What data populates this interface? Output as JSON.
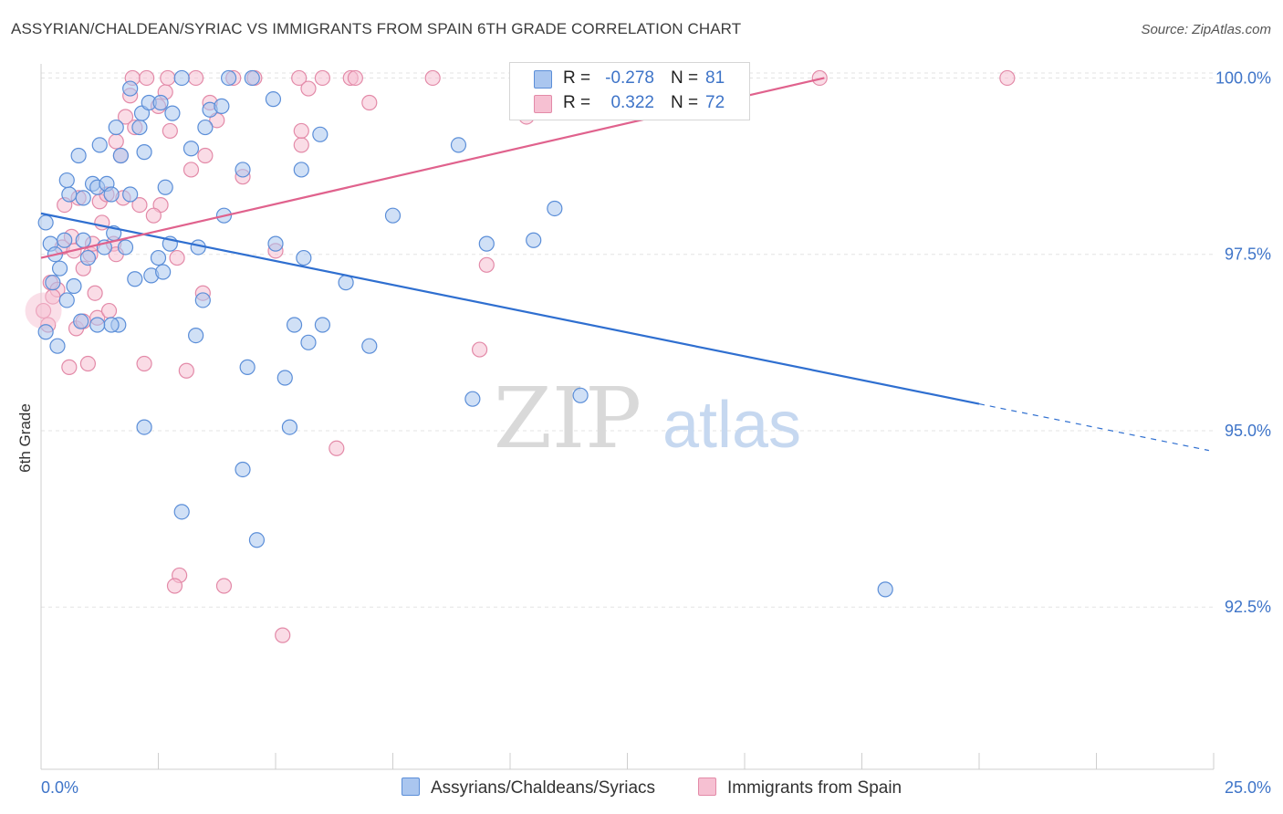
{
  "title": "ASSYRIAN/CHALDEAN/SYRIAC VS IMMIGRANTS FROM SPAIN 6TH GRADE CORRELATION CHART",
  "source": "Source: ZipAtlas.com",
  "watermark": {
    "zip": "ZIP",
    "atlas": "atlas"
  },
  "legend": {
    "r_label": "R =",
    "n_label": "N =",
    "rows": [
      {
        "r": "-0.278",
        "n": "81"
      },
      {
        "r": "0.322",
        "n": "72"
      }
    ]
  },
  "chart_data": {
    "type": "scatter",
    "title": "ASSYRIAN/CHALDEAN/SYRIAC VS IMMIGRANTS FROM SPAIN 6TH GRADE CORRELATION CHART",
    "xlabel": "",
    "ylabel": "6th Grade",
    "xlim": [
      0,
      25
    ],
    "ylim": [
      90.2,
      100.2
    ],
    "x_tick_labels": [
      "0.0%",
      "25.0%"
    ],
    "y_ticks": [
      {
        "value": 100.0,
        "label": "100.0%"
      },
      {
        "value": 97.5,
        "label": "97.5%"
      },
      {
        "value": 95.0,
        "label": "95.0%"
      },
      {
        "value": 92.5,
        "label": "92.5%"
      }
    ],
    "grid": true,
    "legend_position": "top-center",
    "series": [
      {
        "name": "Assyrians/Chaldeans/Syriacs",
        "color": "#5b8ed8",
        "fill": "#aac6ef",
        "r": -0.278,
        "n": 81,
        "trend": {
          "x0": 0.0,
          "y0": 98.08,
          "x1": 20.0,
          "y1": 95.38,
          "dash_to_x": 24.9,
          "dash_to_y": 94.72
        },
        "points": [
          [
            0.1,
            97.95
          ],
          [
            0.2,
            97.65
          ],
          [
            0.3,
            97.5
          ],
          [
            0.25,
            97.1
          ],
          [
            0.4,
            97.3
          ],
          [
            0.55,
            96.85
          ],
          [
            0.6,
            98.35
          ],
          [
            0.55,
            98.55
          ],
          [
            0.8,
            98.9
          ],
          [
            0.9,
            97.7
          ],
          [
            0.85,
            96.55
          ],
          [
            1.0,
            97.45
          ],
          [
            1.1,
            98.5
          ],
          [
            1.2,
            98.45
          ],
          [
            1.25,
            99.05
          ],
          [
            1.35,
            97.6
          ],
          [
            1.4,
            98.5
          ],
          [
            1.5,
            98.35
          ],
          [
            1.55,
            97.8
          ],
          [
            1.6,
            99.3
          ],
          [
            1.65,
            96.5
          ],
          [
            1.8,
            97.6
          ],
          [
            1.9,
            98.35
          ],
          [
            2.0,
            97.15
          ],
          [
            2.1,
            99.3
          ],
          [
            2.15,
            99.5
          ],
          [
            2.2,
            98.95
          ],
          [
            2.3,
            99.65
          ],
          [
            2.35,
            97.2
          ],
          [
            2.5,
            97.45
          ],
          [
            2.55,
            99.65
          ],
          [
            2.6,
            97.25
          ],
          [
            2.65,
            98.45
          ],
          [
            2.75,
            97.65
          ],
          [
            2.8,
            99.5
          ],
          [
            3.0,
            100.0
          ],
          [
            3.2,
            99.0
          ],
          [
            3.3,
            96.35
          ],
          [
            3.35,
            97.6
          ],
          [
            3.45,
            96.85
          ],
          [
            3.5,
            99.3
          ],
          [
            3.6,
            99.55
          ],
          [
            3.85,
            99.6
          ],
          [
            3.9,
            98.05
          ],
          [
            4.0,
            100.0
          ],
          [
            4.3,
            98.7
          ],
          [
            4.4,
            95.9
          ],
          [
            4.5,
            100.0
          ],
          [
            4.95,
            99.7
          ],
          [
            5.0,
            97.65
          ],
          [
            5.2,
            95.75
          ],
          [
            5.3,
            95.05
          ],
          [
            5.4,
            96.5
          ],
          [
            5.55,
            98.7
          ],
          [
            5.6,
            97.45
          ],
          [
            5.7,
            96.25
          ],
          [
            5.95,
            99.2
          ],
          [
            6.0,
            96.5
          ],
          [
            6.5,
            97.1
          ],
          [
            7.0,
            96.2
          ],
          [
            7.5,
            98.05
          ],
          [
            8.9,
            99.05
          ],
          [
            9.2,
            95.45
          ],
          [
            9.5,
            97.65
          ],
          [
            10.5,
            97.7
          ],
          [
            10.95,
            98.15
          ],
          [
            11.5,
            95.5
          ],
          [
            2.2,
            95.05
          ],
          [
            3.0,
            93.85
          ],
          [
            4.3,
            94.45
          ],
          [
            4.6,
            93.45
          ],
          [
            1.9,
            99.85
          ],
          [
            0.1,
            96.4
          ],
          [
            0.35,
            96.2
          ],
          [
            0.7,
            97.05
          ],
          [
            1.5,
            96.5
          ],
          [
            1.2,
            96.5
          ],
          [
            0.5,
            97.7
          ],
          [
            0.9,
            98.3
          ],
          [
            1.7,
            98.9
          ],
          [
            18.0,
            92.75
          ]
        ]
      },
      {
        "name": "Immigrants from Spain",
        "color": "#e38aa8",
        "fill": "#f6c0d2",
        "r": 0.322,
        "n": 72,
        "trend": {
          "x0": 0.0,
          "y0": 97.45,
          "x1": 16.7,
          "y1": 100.0
        },
        "points": [
          [
            0.05,
            96.7
          ],
          [
            0.15,
            96.5
          ],
          [
            0.2,
            97.1
          ],
          [
            0.35,
            97.0
          ],
          [
            0.45,
            97.6
          ],
          [
            0.5,
            98.2
          ],
          [
            0.6,
            95.9
          ],
          [
            0.65,
            97.75
          ],
          [
            0.7,
            97.55
          ],
          [
            0.75,
            96.45
          ],
          [
            0.8,
            98.3
          ],
          [
            0.9,
            96.55
          ],
          [
            1.0,
            95.95
          ],
          [
            1.05,
            97.5
          ],
          [
            1.1,
            97.65
          ],
          [
            1.2,
            96.6
          ],
          [
            1.25,
            98.25
          ],
          [
            1.3,
            97.95
          ],
          [
            1.4,
            98.35
          ],
          [
            1.45,
            96.7
          ],
          [
            1.55,
            97.65
          ],
          [
            1.6,
            99.1
          ],
          [
            1.7,
            98.9
          ],
          [
            1.75,
            98.3
          ],
          [
            1.8,
            99.45
          ],
          [
            1.9,
            99.75
          ],
          [
            1.95,
            100.0
          ],
          [
            2.0,
            99.3
          ],
          [
            2.1,
            98.2
          ],
          [
            2.2,
            95.95
          ],
          [
            2.25,
            100.0
          ],
          [
            2.5,
            99.6
          ],
          [
            2.55,
            98.2
          ],
          [
            2.65,
            99.8
          ],
          [
            2.7,
            100.0
          ],
          [
            2.75,
            99.25
          ],
          [
            2.9,
            97.45
          ],
          [
            2.95,
            92.95
          ],
          [
            3.1,
            95.85
          ],
          [
            3.2,
            98.7
          ],
          [
            3.3,
            100.0
          ],
          [
            3.45,
            96.95
          ],
          [
            3.5,
            98.9
          ],
          [
            3.6,
            99.65
          ],
          [
            3.75,
            99.4
          ],
          [
            3.9,
            92.8
          ],
          [
            4.1,
            100.0
          ],
          [
            4.3,
            98.6
          ],
          [
            4.55,
            100.0
          ],
          [
            5.0,
            97.55
          ],
          [
            5.15,
            92.1
          ],
          [
            5.5,
            100.0
          ],
          [
            5.55,
            99.05
          ],
          [
            5.55,
            99.25
          ],
          [
            5.7,
            99.85
          ],
          [
            6.0,
            100.0
          ],
          [
            6.3,
            94.75
          ],
          [
            6.6,
            100.0
          ],
          [
            6.7,
            100.0
          ],
          [
            7.0,
            99.65
          ],
          [
            8.35,
            100.0
          ],
          [
            9.5,
            97.35
          ],
          [
            9.35,
            96.15
          ],
          [
            10.35,
            99.45
          ],
          [
            2.85,
            92.8
          ],
          [
            0.25,
            96.9
          ],
          [
            1.15,
            96.95
          ],
          [
            16.6,
            100.0
          ],
          [
            20.6,
            100.0
          ],
          [
            0.9,
            97.3
          ],
          [
            1.6,
            97.5
          ],
          [
            2.4,
            98.05
          ]
        ]
      }
    ]
  }
}
